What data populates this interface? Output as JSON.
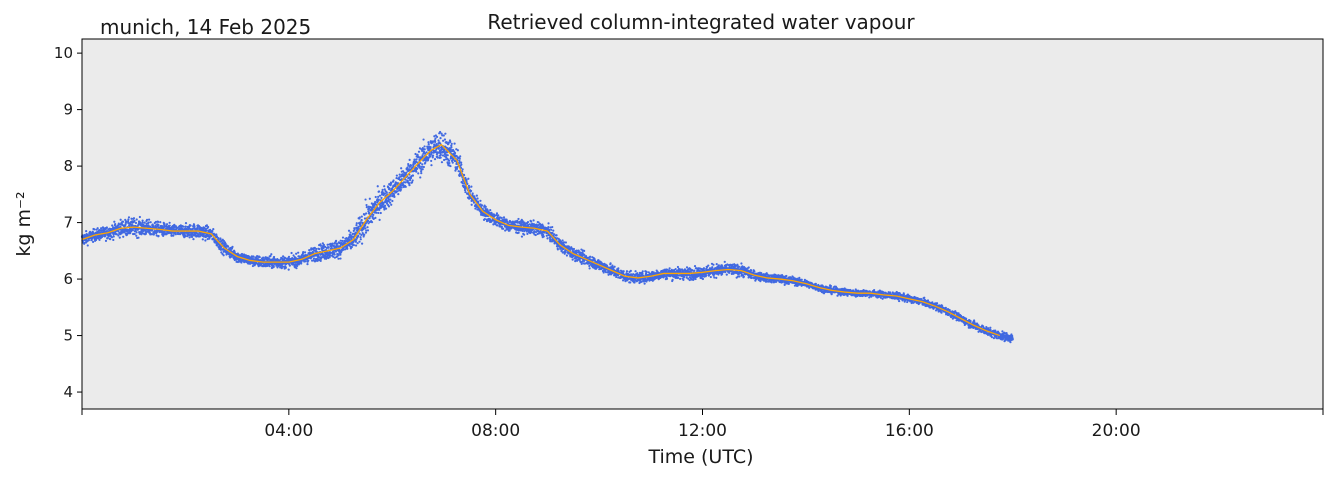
{
  "header": {
    "location_date": "munich, 14 Feb 2025",
    "title": "Retrieved column-integrated water vapour"
  },
  "chart_data": {
    "type": "scatter",
    "title": "Retrieved column-integrated water vapour",
    "location_label": "munich, 14 Feb 2025",
    "xlabel": "Time (UTC)",
    "ylabel": "kg m⁻²",
    "xlim_hours": [
      0,
      24
    ],
    "ylim": [
      3.7,
      10.25
    ],
    "x_tick_hours": [
      4,
      8,
      12,
      16,
      20
    ],
    "x_tick_labels": [
      "04:00",
      "08:00",
      "12:00",
      "16:00",
      "20:00"
    ],
    "y_ticks": [
      4,
      5,
      6,
      7,
      8,
      9,
      10
    ],
    "y_tick_labels": [
      "4",
      "5",
      "6",
      "7",
      "8",
      "9",
      "10"
    ],
    "grid": false,
    "background_color": "#ebebeb",
    "series": [
      {
        "kind": "scatter",
        "color": "#4169e1",
        "x_hours": [
          0.0,
          0.25,
          0.5,
          0.75,
          1.0,
          1.25,
          1.5,
          1.75,
          2.0,
          2.25,
          2.5,
          2.75,
          3.0,
          3.25,
          3.5,
          3.75,
          4.0,
          4.25,
          4.5,
          4.75,
          5.0,
          5.25,
          5.5,
          5.75,
          6.0,
          6.25,
          6.5,
          6.75,
          6.95,
          7.25,
          7.5,
          7.75,
          8.0,
          8.25,
          8.5,
          8.75,
          9.0,
          9.25,
          9.5,
          9.75,
          10.0,
          10.25,
          10.5,
          10.75,
          11.0,
          11.25,
          11.5,
          11.75,
          12.0,
          12.25,
          12.5,
          12.75,
          13.0,
          13.25,
          13.5,
          13.75,
          14.0,
          14.25,
          14.5,
          14.75,
          15.0,
          15.25,
          15.5,
          15.75,
          16.0,
          16.25,
          16.5,
          16.75,
          17.0,
          17.25,
          17.5,
          17.75,
          18.0
        ],
        "center": [
          6.7,
          6.78,
          6.82,
          6.9,
          6.92,
          6.9,
          6.88,
          6.85,
          6.85,
          6.85,
          6.8,
          6.55,
          6.4,
          6.33,
          6.3,
          6.3,
          6.3,
          6.35,
          6.45,
          6.5,
          6.55,
          6.7,
          7.05,
          7.35,
          7.55,
          7.8,
          8.05,
          8.28,
          8.38,
          8.1,
          7.5,
          7.2,
          7.05,
          6.95,
          6.92,
          6.9,
          6.85,
          6.6,
          6.45,
          6.35,
          6.25,
          6.15,
          6.05,
          6.02,
          6.05,
          6.1,
          6.1,
          6.1,
          6.12,
          6.15,
          6.17,
          6.15,
          6.07,
          6.02,
          6.0,
          5.97,
          5.92,
          5.85,
          5.8,
          5.77,
          5.75,
          5.75,
          5.72,
          5.7,
          5.65,
          5.6,
          5.52,
          5.42,
          5.3,
          5.18,
          5.08,
          5.0,
          4.95
        ],
        "spread": [
          0.22,
          0.2,
          0.22,
          0.28,
          0.3,
          0.28,
          0.24,
          0.22,
          0.22,
          0.26,
          0.22,
          0.22,
          0.2,
          0.18,
          0.2,
          0.22,
          0.2,
          0.22,
          0.25,
          0.3,
          0.3,
          0.35,
          0.55,
          0.45,
          0.4,
          0.45,
          0.45,
          0.5,
          0.55,
          0.45,
          0.3,
          0.25,
          0.22,
          0.22,
          0.22,
          0.22,
          0.22,
          0.22,
          0.2,
          0.2,
          0.2,
          0.2,
          0.2,
          0.18,
          0.18,
          0.18,
          0.2,
          0.2,
          0.2,
          0.22,
          0.2,
          0.2,
          0.15,
          0.14,
          0.14,
          0.14,
          0.12,
          0.12,
          0.12,
          0.12,
          0.12,
          0.12,
          0.12,
          0.12,
          0.12,
          0.12,
          0.12,
          0.12,
          0.14,
          0.14,
          0.14,
          0.14,
          0.14
        ],
        "points_per_hour": 360
      },
      {
        "kind": "line",
        "color": "#ffa500",
        "x_hours": [
          0.0,
          0.25,
          0.5,
          0.75,
          1.0,
          1.25,
          1.5,
          1.75,
          2.0,
          2.25,
          2.5,
          2.75,
          3.0,
          3.25,
          3.5,
          3.75,
          4.0,
          4.25,
          4.5,
          4.75,
          5.0,
          5.25,
          5.5,
          5.75,
          6.0,
          6.25,
          6.5,
          6.75,
          6.95,
          7.25,
          7.5,
          7.75,
          8.0,
          8.25,
          8.5,
          8.75,
          9.0,
          9.25,
          9.5,
          9.75,
          10.0,
          10.25,
          10.5,
          10.75,
          11.0,
          11.25,
          11.5,
          11.75,
          12.0,
          12.25,
          12.5,
          12.75,
          13.0,
          13.25,
          13.5,
          13.75,
          14.0,
          14.25,
          14.5,
          14.75,
          15.0,
          15.25,
          15.5,
          15.75,
          16.0,
          16.25,
          16.5,
          16.75,
          17.0,
          17.25,
          17.5,
          17.75
        ],
        "values": [
          6.7,
          6.78,
          6.82,
          6.9,
          6.92,
          6.9,
          6.88,
          6.85,
          6.85,
          6.85,
          6.8,
          6.55,
          6.4,
          6.33,
          6.3,
          6.3,
          6.3,
          6.35,
          6.45,
          6.5,
          6.55,
          6.7,
          7.05,
          7.35,
          7.55,
          7.8,
          8.05,
          8.28,
          8.38,
          8.1,
          7.5,
          7.2,
          7.05,
          6.95,
          6.92,
          6.9,
          6.85,
          6.6,
          6.45,
          6.35,
          6.25,
          6.15,
          6.05,
          6.02,
          6.05,
          6.1,
          6.1,
          6.1,
          6.12,
          6.15,
          6.17,
          6.15,
          6.07,
          6.02,
          6.0,
          5.97,
          5.92,
          5.85,
          5.8,
          5.77,
          5.75,
          5.75,
          5.72,
          5.7,
          5.65,
          5.6,
          5.52,
          5.42,
          5.3,
          5.18,
          5.08,
          5.0
        ]
      }
    ]
  }
}
